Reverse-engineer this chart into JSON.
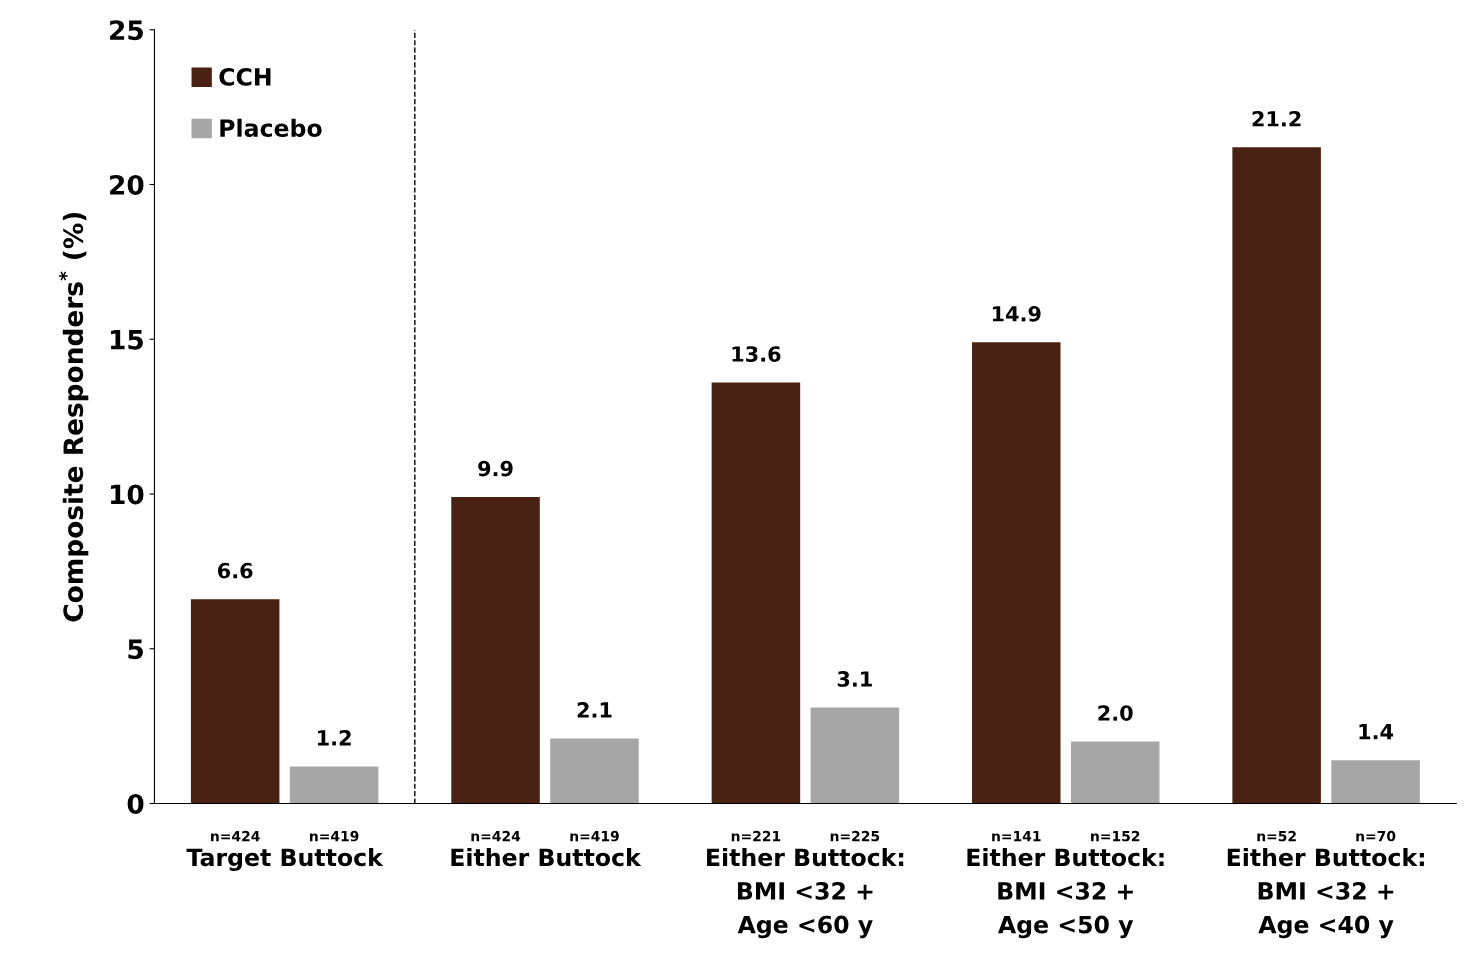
{
  "chart_data": {
    "type": "bar",
    "ylabel": "Composite Responders$^{*}$ (%)",
    "categories": [
      "Target Buttock",
      "Either Buttock",
      "Either Buttock:\nBMI <32 +\nAge <60 y",
      "Either Buttock:\nBMI <32 +\nAge <50 y",
      "Either Buttock:\nBMI <32 +\nAge <40 y"
    ],
    "series": [
      {
        "name": "CCH",
        "color": "#4a2214",
        "values": [
          6.6,
          9.9,
          13.6,
          14.9,
          21.2
        ],
        "value_labels": [
          "6.6",
          "9.9",
          "13.6",
          "14.9",
          "21.2"
        ]
      },
      {
        "name": "Placebo",
        "color": "#a6a6a6",
        "values": [
          1.2,
          2.1,
          3.1,
          2.0,
          1.4
        ],
        "value_labels": [
          "1.2",
          "2.1",
          "3.1",
          "2.0",
          "1.4"
        ]
      }
    ],
    "ylim": [
      0,
      25
    ],
    "yticks": [
      0,
      5,
      10,
      15,
      20,
      25
    ],
    "annotations": [
      "n=424",
      "n=419",
      "n=424",
      "n=419",
      "n=221",
      "n=225",
      "n=141",
      "n=152",
      "n=52",
      "n=70"
    ],
    "legend": "top left",
    "grid": false
  }
}
